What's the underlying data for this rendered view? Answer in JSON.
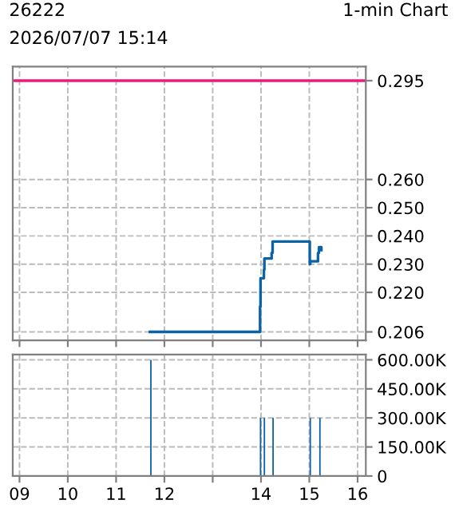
{
  "chart_data": [
    {
      "type": "step",
      "title": "26222",
      "subtitle": "2026/07/07 15:14",
      "annotations": [
        "1-min Chart"
      ],
      "x": [
        11.7,
        13.98,
        13.99,
        14.06,
        14.07,
        14.22,
        14.24,
        15.01,
        15.02,
        15.18,
        15.2,
        15.25
      ],
      "series": [
        {
          "color": "#0d62a3",
          "values": [
            0.206,
            0.215,
            0.225,
            0.228,
            0.232,
            0.234,
            0.238,
            0.23,
            0.231,
            0.234,
            0.236,
            0.235
          ]
        }
      ],
      "xlim": [
        8.86,
        16.17
      ],
      "xticks": [
        9,
        10,
        11,
        12,
        13,
        14,
        15,
        16
      ],
      "ylim": [
        0.203,
        0.3
      ],
      "yticks": [
        {
          "value": 0.206,
          "label": "0.206"
        },
        {
          "value": 0.22,
          "label": "0.220"
        },
        {
          "value": 0.23,
          "label": "0.230"
        },
        {
          "value": 0.24,
          "label": "0.240"
        },
        {
          "value": 0.25,
          "label": "0.250"
        },
        {
          "value": 0.26,
          "label": "0.260"
        },
        {
          "value": 0.295,
          "label": "0.295"
        }
      ],
      "ref_lines": [
        {
          "axis": "y",
          "value": 0.295,
          "color": "#f0187a"
        }
      ],
      "grid": true,
      "tick_labels": "y",
      "line_style": "solid"
    },
    {
      "type": "bar",
      "x": [
        11.72,
        13.99,
        14.07,
        14.25,
        15.02,
        15.22
      ],
      "series": [
        {
          "color": "#0d62a3",
          "values": [
            600000,
            300000,
            300000,
            300000,
            300000,
            300000
          ]
        }
      ],
      "xlim": [
        8.86,
        16.17
      ],
      "xticks": [
        {
          "value": 9,
          "label": "09"
        },
        {
          "value": 10,
          "label": "10"
        },
        {
          "value": 11,
          "label": "11"
        },
        {
          "value": 12,
          "label": "12"
        },
        {
          "value": 13,
          "label": null
        },
        {
          "value": 14,
          "label": "14"
        },
        {
          "value": 15,
          "label": "15"
        },
        {
          "value": 16,
          "label": "16"
        }
      ],
      "ylim": [
        0,
        627000
      ],
      "yticks": [
        0,
        {
          "value": 150000,
          "label": "150.00K"
        },
        {
          "value": 300000,
          "label": "300.00K"
        },
        {
          "value": 450000,
          "label": "450.00K"
        },
        {
          "value": 600000,
          "label": "600.00K"
        }
      ],
      "grid": true
    }
  ]
}
